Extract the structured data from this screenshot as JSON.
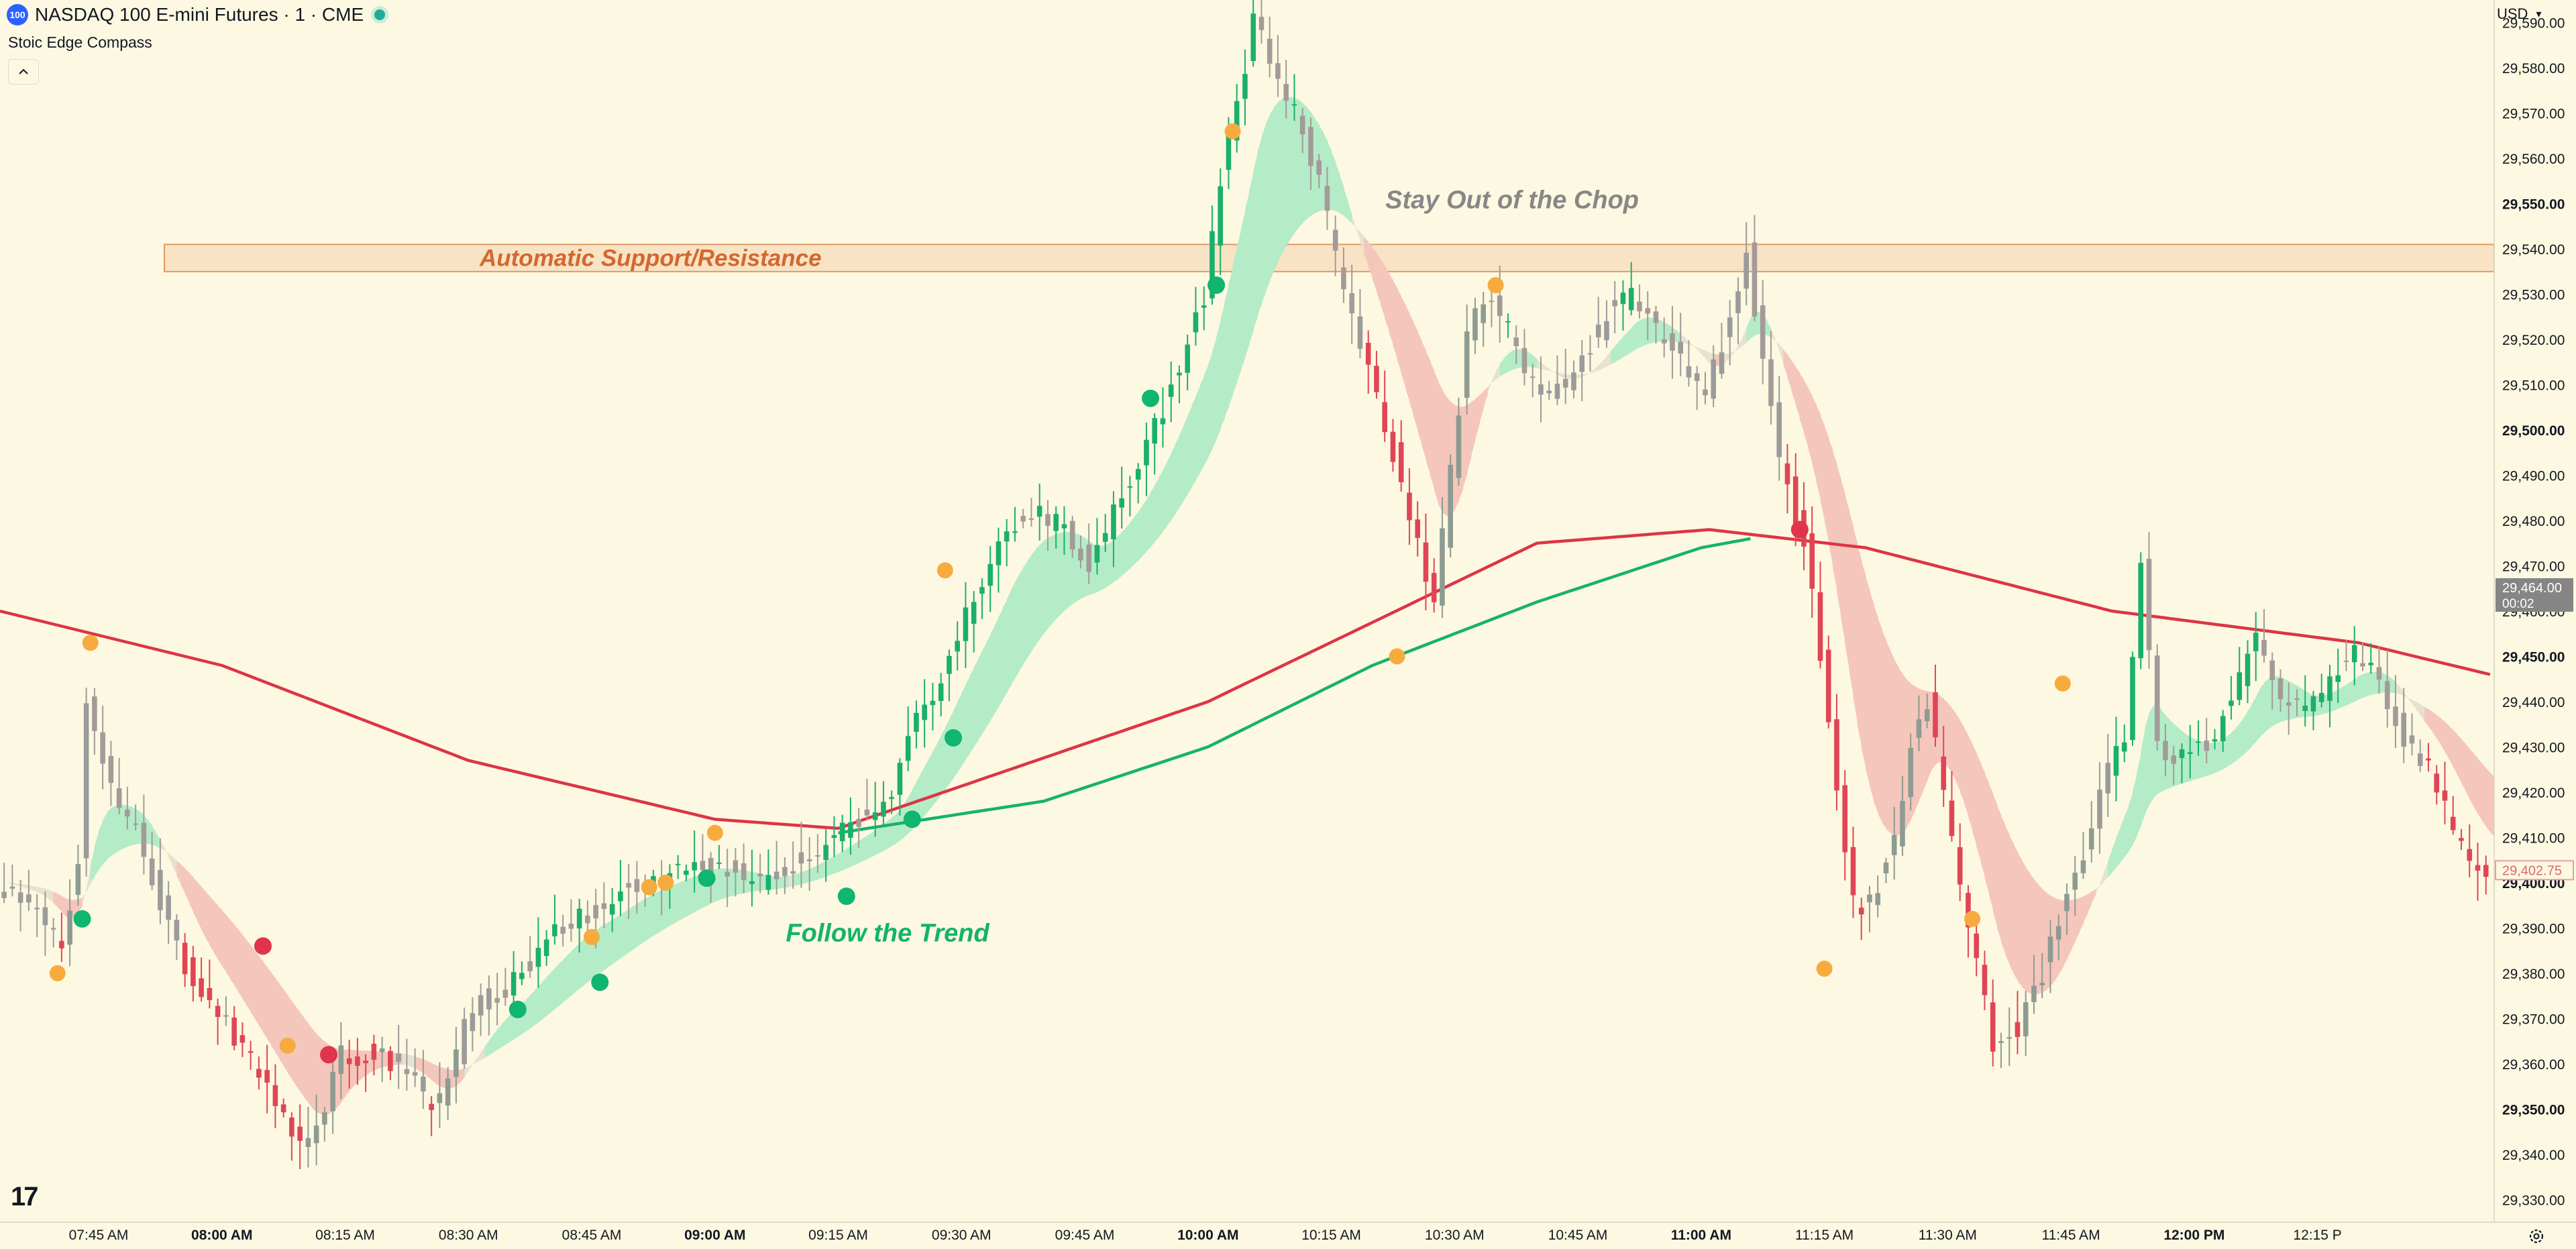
{
  "header": {
    "symbol_badge": "100",
    "title": "NASDAQ 100 E-mini Futures · 1 · CME",
    "indicator": "Stoic Edge Compass"
  },
  "axis": {
    "currency": "USD"
  },
  "chart_data": {
    "type": "candlestick",
    "title": "NASDAQ 100 E-mini Futures · 1 · CME",
    "ylim": [
      29325,
      29595
    ],
    "y_ticks": [
      29330,
      29340,
      29350,
      29360,
      29370,
      29380,
      29390,
      29400,
      29410,
      29420,
      29430,
      29440,
      29450,
      29460,
      29470,
      29480,
      29490,
      29500,
      29510,
      29520,
      29530,
      29540,
      29550,
      29560,
      29570,
      29580,
      29590
    ],
    "y_ticks_bold": [
      29350,
      29400,
      29450,
      29500,
      29550
    ],
    "x_ticks": [
      {
        "label": "07:45 AM",
        "t": -15,
        "bold": false
      },
      {
        "label": "08:00 AM",
        "t": 0,
        "bold": true
      },
      {
        "label": "08:15 AM",
        "t": 15,
        "bold": false
      },
      {
        "label": "08:30 AM",
        "t": 30,
        "bold": false
      },
      {
        "label": "08:45 AM",
        "t": 45,
        "bold": false
      },
      {
        "label": "09:00 AM",
        "t": 60,
        "bold": true
      },
      {
        "label": "09:15 AM",
        "t": 75,
        "bold": false
      },
      {
        "label": "09:30 AM",
        "t": 90,
        "bold": false
      },
      {
        "label": "09:45 AM",
        "t": 105,
        "bold": false
      },
      {
        "label": "10:00 AM",
        "t": 120,
        "bold": true
      },
      {
        "label": "10:15 AM",
        "t": 135,
        "bold": false
      },
      {
        "label": "10:30 AM",
        "t": 150,
        "bold": false
      },
      {
        "label": "10:45 AM",
        "t": 165,
        "bold": false
      },
      {
        "label": "11:00 AM",
        "t": 180,
        "bold": true
      },
      {
        "label": "11:15 AM",
        "t": 195,
        "bold": false
      },
      {
        "label": "11:30 AM",
        "t": 210,
        "bold": false
      },
      {
        "label": "11:45 AM",
        "t": 225,
        "bold": false
      },
      {
        "label": "12:00 PM",
        "t": 240,
        "bold": true
      },
      {
        "label": "12:15 P",
        "t": 255,
        "bold": false
      }
    ],
    "price_path": [
      [
        -27,
        29400
      ],
      [
        -22,
        29395
      ],
      [
        -19,
        29385
      ],
      [
        -17,
        29405
      ],
      [
        -16,
        29440
      ],
      [
        -13,
        29420
      ],
      [
        -10,
        29412
      ],
      [
        -6,
        29390
      ],
      [
        -3,
        29378
      ],
      [
        0,
        29372
      ],
      [
        4,
        29360
      ],
      [
        8,
        29348
      ],
      [
        11,
        29342
      ],
      [
        13,
        29350
      ],
      [
        15,
        29362
      ],
      [
        18,
        29362
      ],
      [
        22,
        29360
      ],
      [
        26,
        29350
      ],
      [
        28,
        29355
      ],
      [
        30,
        29368
      ],
      [
        33,
        29375
      ],
      [
        36,
        29378
      ],
      [
        39,
        29385
      ],
      [
        43,
        29392
      ],
      [
        47,
        29395
      ],
      [
        51,
        29400
      ],
      [
        55,
        29402
      ],
      [
        59,
        29405
      ],
      [
        63,
        29402
      ],
      [
        67,
        29400
      ],
      [
        71,
        29405
      ],
      [
        75,
        29410
      ],
      [
        79,
        29415
      ],
      [
        82,
        29420
      ],
      [
        84,
        29432
      ],
      [
        87,
        29442
      ],
      [
        90,
        29455
      ],
      [
        93,
        29465
      ],
      [
        96,
        29478
      ],
      [
        99,
        29482
      ],
      [
        103,
        29478
      ],
      [
        106,
        29470
      ],
      [
        109,
        29482
      ],
      [
        112,
        29492
      ],
      [
        115,
        29505
      ],
      [
        118,
        29520
      ],
      [
        120,
        29530
      ],
      [
        122,
        29555
      ],
      [
        124,
        29572
      ],
      [
        126,
        29590
      ],
      [
        128,
        29582
      ],
      [
        131,
        29570
      ],
      [
        134,
        29555
      ],
      [
        137,
        29530
      ],
      [
        140,
        29515
      ],
      [
        143,
        29495
      ],
      [
        146,
        29475
      ],
      [
        148,
        29462
      ],
      [
        150,
        29490
      ],
      [
        152,
        29520
      ],
      [
        154,
        29530
      ],
      [
        157,
        29522
      ],
      [
        160,
        29510
      ],
      [
        163,
        29508
      ],
      [
        166,
        29515
      ],
      [
        169,
        29525
      ],
      [
        172,
        29530
      ],
      [
        175,
        29522
      ],
      [
        178,
        29515
      ],
      [
        181,
        29508
      ],
      [
        184,
        29525
      ],
      [
        186,
        29540
      ],
      [
        188,
        29515
      ],
      [
        190,
        29495
      ],
      [
        193,
        29475
      ],
      [
        195,
        29450
      ],
      [
        197,
        29420
      ],
      [
        199,
        29395
      ],
      [
        201,
        29395
      ],
      [
        204,
        29410
      ],
      [
        206,
        29430
      ],
      [
        208,
        29440
      ],
      [
        210,
        29420
      ],
      [
        213,
        29390
      ],
      [
        216,
        29365
      ],
      [
        219,
        29368
      ],
      [
        222,
        29380
      ],
      [
        225,
        29398
      ],
      [
        228,
        29412
      ],
      [
        230,
        29425
      ],
      [
        232,
        29432
      ],
      [
        234,
        29470
      ],
      [
        236,
        29430
      ],
      [
        239,
        29428
      ],
      [
        242,
        29430
      ],
      [
        245,
        29440
      ],
      [
        248,
        29455
      ],
      [
        251,
        29442
      ],
      [
        254,
        29438
      ],
      [
        257,
        29445
      ],
      [
        260,
        29450
      ],
      [
        263,
        29445
      ],
      [
        266,
        29432
      ],
      [
        269,
        29425
      ],
      [
        272,
        29412
      ],
      [
        274,
        29405
      ],
      [
        276,
        29403
      ]
    ],
    "red_ma": [
      [
        -27,
        29460
      ],
      [
        0,
        29448
      ],
      [
        30,
        29427
      ],
      [
        60,
        29414
      ],
      [
        75,
        29412
      ],
      [
        120,
        29440
      ],
      [
        160,
        29475
      ],
      [
        181,
        29478
      ],
      [
        200,
        29474
      ],
      [
        230,
        29460
      ],
      [
        260,
        29453
      ],
      [
        276,
        29446
      ]
    ],
    "green_ma": [
      [
        75,
        29411
      ],
      [
        100,
        29418
      ],
      [
        120,
        29430
      ],
      [
        140,
        29448
      ],
      [
        160,
        29462
      ],
      [
        180,
        29474
      ],
      [
        186,
        29476
      ]
    ],
    "support_resistance_zone": {
      "t_start": -7,
      "price_low": 29535,
      "price_high": 29541,
      "label": "Automatic Support/Resistance"
    },
    "annotations": [
      {
        "text": "Follow the Trend",
        "t": 81,
        "price": 29387,
        "color": "#14b36b"
      },
      {
        "text": "Stay Out of the Chop",
        "t": 157,
        "price": 29549,
        "color": "#878787"
      }
    ],
    "signals": [
      {
        "t": -17,
        "price": 29392,
        "type": "green"
      },
      {
        "t": -20,
        "price": 29380,
        "type": "orange"
      },
      {
        "t": -16,
        "price": 29453,
        "type": "orange"
      },
      {
        "t": 5,
        "price": 29386,
        "type": "red"
      },
      {
        "t": 8,
        "price": 29364,
        "type": "orange"
      },
      {
        "t": 13,
        "price": 29362,
        "type": "red"
      },
      {
        "t": 36,
        "price": 29372,
        "type": "green"
      },
      {
        "t": 45,
        "price": 29388,
        "type": "orange"
      },
      {
        "t": 46,
        "price": 29378,
        "type": "green"
      },
      {
        "t": 52,
        "price": 29399,
        "type": "orange"
      },
      {
        "t": 54,
        "price": 29400,
        "type": "orange"
      },
      {
        "t": 59,
        "price": 29401,
        "type": "green"
      },
      {
        "t": 60,
        "price": 29411,
        "type": "orange"
      },
      {
        "t": 76,
        "price": 29397,
        "type": "green"
      },
      {
        "t": 84,
        "price": 29414,
        "type": "green"
      },
      {
        "t": 88,
        "price": 29469,
        "type": "orange"
      },
      {
        "t": 89,
        "price": 29432,
        "type": "green"
      },
      {
        "t": 113,
        "price": 29507,
        "type": "green"
      },
      {
        "t": 121,
        "price": 29532,
        "type": "green"
      },
      {
        "t": 123,
        "price": 29566,
        "type": "orange"
      },
      {
        "t": 143,
        "price": 29450,
        "type": "orange"
      },
      {
        "t": 155,
        "price": 29532,
        "type": "orange"
      },
      {
        "t": 192,
        "price": 29478,
        "type": "red"
      },
      {
        "t": 195,
        "price": 29381,
        "type": "orange"
      },
      {
        "t": 213,
        "price": 29392,
        "type": "orange"
      },
      {
        "t": 224,
        "price": 29444,
        "type": "orange"
      }
    ],
    "price_labels": {
      "current": {
        "price": 29464,
        "text": "29,464.00",
        "countdown": "00:02"
      },
      "last": {
        "price": 29402.75,
        "text": "29,402.75"
      }
    }
  }
}
